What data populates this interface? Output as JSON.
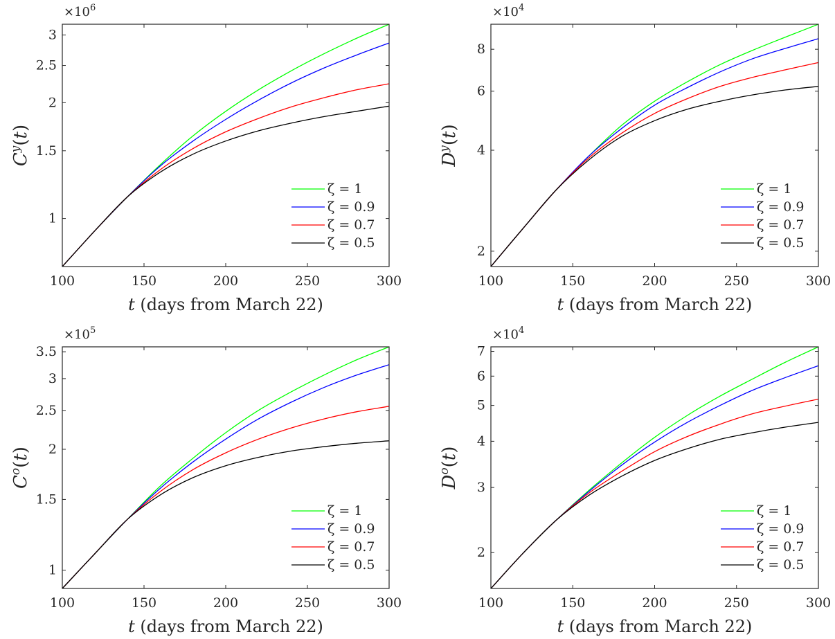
{
  "chart_data": [
    {
      "type": "line",
      "yscale": "log",
      "ylabel": "C^y(t)",
      "ylabel_base": "C",
      "ylabel_sup": "y",
      "xlabel": "t (days from March 22)",
      "xlabel_var": "t",
      "xlabel_rest": " (days from March 22)",
      "exponent_label": "×10",
      "exponent": "6",
      "xlim": [
        100,
        300
      ],
      "ylim": [
        0.75,
        3.2
      ],
      "xticks": [
        100,
        150,
        200,
        250,
        300
      ],
      "xtick_labels": [
        "100",
        "150",
        "200",
        "250",
        "300"
      ],
      "yticks": [
        1,
        1.5,
        2,
        2.5,
        3
      ],
      "ytick_labels": [
        "1",
        "1.5",
        "2",
        "2.5",
        "3"
      ],
      "legend_position": "bottom-right",
      "x": [
        100,
        120,
        140,
        160,
        180,
        200,
        220,
        240,
        260,
        280,
        300
      ],
      "series": [
        {
          "name": "ζ = 1",
          "color": "#00ff00",
          "values": [
            0.75,
            0.93,
            1.14,
            1.38,
            1.64,
            1.9,
            2.16,
            2.42,
            2.68,
            2.94,
            3.2
          ]
        },
        {
          "name": "ζ = 0.9",
          "color": "#0000ff",
          "values": [
            0.75,
            0.93,
            1.14,
            1.37,
            1.59,
            1.81,
            2.03,
            2.25,
            2.46,
            2.66,
            2.86
          ]
        },
        {
          "name": "ζ = 0.7",
          "color": "#ff0000",
          "values": [
            0.75,
            0.93,
            1.14,
            1.34,
            1.52,
            1.68,
            1.82,
            1.95,
            2.06,
            2.16,
            2.24
          ]
        },
        {
          "name": "ζ = 0.5",
          "color": "#000000",
          "values": [
            0.75,
            0.93,
            1.14,
            1.32,
            1.47,
            1.59,
            1.69,
            1.77,
            1.84,
            1.9,
            1.96
          ]
        }
      ]
    },
    {
      "type": "line",
      "yscale": "log",
      "ylabel": "D^y(t)",
      "ylabel_base": "D",
      "ylabel_sup": "y",
      "xlabel": "t (days from March 22)",
      "xlabel_var": "t",
      "xlabel_rest": " (days from March 22)",
      "exponent_label": "×10",
      "exponent": "4",
      "xlim": [
        100,
        300
      ],
      "ylim": [
        1.8,
        9.5
      ],
      "xticks": [
        100,
        150,
        200,
        250,
        300
      ],
      "xtick_labels": [
        "100",
        "150",
        "200",
        "250",
        "300"
      ],
      "yticks": [
        2,
        4,
        6,
        8
      ],
      "ytick_labels": [
        "2",
        "4",
        "6",
        "8"
      ],
      "legend_position": "bottom-right",
      "x": [
        100,
        120,
        140,
        160,
        180,
        200,
        220,
        240,
        260,
        280,
        300
      ],
      "series": [
        {
          "name": "ζ = 1",
          "color": "#00ff00",
          "values": [
            1.8,
            2.35,
            3.05,
            3.85,
            4.75,
            5.6,
            6.4,
            7.2,
            7.95,
            8.7,
            9.5
          ]
        },
        {
          "name": "ζ = 0.9",
          "color": "#0000ff",
          "values": [
            1.8,
            2.35,
            3.05,
            3.85,
            4.65,
            5.45,
            6.15,
            6.85,
            7.5,
            8.05,
            8.6
          ]
        },
        {
          "name": "ζ = 0.7",
          "color": "#ff0000",
          "values": [
            1.8,
            2.35,
            3.05,
            3.8,
            4.5,
            5.15,
            5.7,
            6.2,
            6.6,
            6.95,
            7.3
          ]
        },
        {
          "name": "ζ = 0.5",
          "color": "#000000",
          "values": [
            1.8,
            2.35,
            3.05,
            3.75,
            4.4,
            4.9,
            5.3,
            5.6,
            5.85,
            6.05,
            6.2
          ]
        }
      ]
    },
    {
      "type": "line",
      "yscale": "log",
      "ylabel": "C^o(t)",
      "ylabel_base": "C",
      "ylabel_sup": "o",
      "xlabel": "t (days from March 22)",
      "xlabel_var": "t",
      "xlabel_rest": " (days from March 22)",
      "exponent_label": "×10",
      "exponent": "5",
      "xlim": [
        100,
        300
      ],
      "ylim": [
        0.9,
        3.6
      ],
      "xticks": [
        100,
        150,
        200,
        250,
        300
      ],
      "xtick_labels": [
        "100",
        "150",
        "200",
        "250",
        "300"
      ],
      "yticks": [
        1,
        1.5,
        2,
        2.5,
        3,
        3.5
      ],
      "ytick_labels": [
        "1",
        "1.5",
        "2",
        "2.5",
        "3",
        "3.5"
      ],
      "legend_position": "bottom-right",
      "x": [
        100,
        120,
        140,
        160,
        180,
        200,
        220,
        240,
        260,
        280,
        300
      ],
      "series": [
        {
          "name": "ζ = 1",
          "color": "#00ff00",
          "values": [
            0.9,
            1.1,
            1.34,
            1.62,
            1.9,
            2.2,
            2.5,
            2.78,
            3.06,
            3.34,
            3.6
          ]
        },
        {
          "name": "ζ = 0.9",
          "color": "#0000ff",
          "values": [
            0.9,
            1.1,
            1.34,
            1.6,
            1.86,
            2.12,
            2.38,
            2.62,
            2.85,
            3.06,
            3.25
          ]
        },
        {
          "name": "ζ = 0.7",
          "color": "#ff0000",
          "values": [
            0.9,
            1.1,
            1.34,
            1.57,
            1.78,
            1.96,
            2.12,
            2.26,
            2.38,
            2.48,
            2.56
          ]
        },
        {
          "name": "ζ = 0.5",
          "color": "#000000",
          "values": [
            0.9,
            1.1,
            1.34,
            1.54,
            1.7,
            1.82,
            1.91,
            1.98,
            2.03,
            2.07,
            2.1
          ]
        }
      ]
    },
    {
      "type": "line",
      "yscale": "log",
      "ylabel": "D^o(t)",
      "ylabel_base": "D",
      "ylabel_sup": "o",
      "xlabel": "t (days from March 22)",
      "xlabel_var": "t",
      "xlabel_rest": " (days from March 22)",
      "exponent_label": "×10",
      "exponent": "4",
      "xlim": [
        100,
        300
      ],
      "ylim": [
        1.6,
        7.2
      ],
      "xticks": [
        100,
        150,
        200,
        250,
        300
      ],
      "xtick_labels": [
        "100",
        "150",
        "200",
        "250",
        "300"
      ],
      "yticks": [
        2,
        3,
        4,
        5,
        6,
        7
      ],
      "ytick_labels": [
        "2",
        "3",
        "4",
        "5",
        "6",
        "7"
      ],
      "legend_position": "bottom-right",
      "x": [
        100,
        120,
        140,
        160,
        180,
        200,
        220,
        240,
        260,
        280,
        300
      ],
      "series": [
        {
          "name": "ζ = 1",
          "color": "#00ff00",
          "values": [
            1.6,
            2.0,
            2.45,
            2.95,
            3.5,
            4.1,
            4.7,
            5.3,
            5.9,
            6.55,
            7.2
          ]
        },
        {
          "name": "ζ = 0.9",
          "color": "#0000ff",
          "values": [
            1.6,
            2.0,
            2.45,
            2.93,
            3.45,
            3.98,
            4.5,
            5.0,
            5.5,
            5.95,
            6.4
          ]
        },
        {
          "name": "ζ = 0.7",
          "color": "#ff0000",
          "values": [
            1.6,
            2.0,
            2.45,
            2.9,
            3.32,
            3.75,
            4.12,
            4.45,
            4.75,
            4.98,
            5.2
          ]
        },
        {
          "name": "ζ = 0.5",
          "color": "#000000",
          "values": [
            1.6,
            2.0,
            2.45,
            2.86,
            3.22,
            3.55,
            3.82,
            4.05,
            4.22,
            4.37,
            4.5
          ]
        }
      ]
    }
  ]
}
